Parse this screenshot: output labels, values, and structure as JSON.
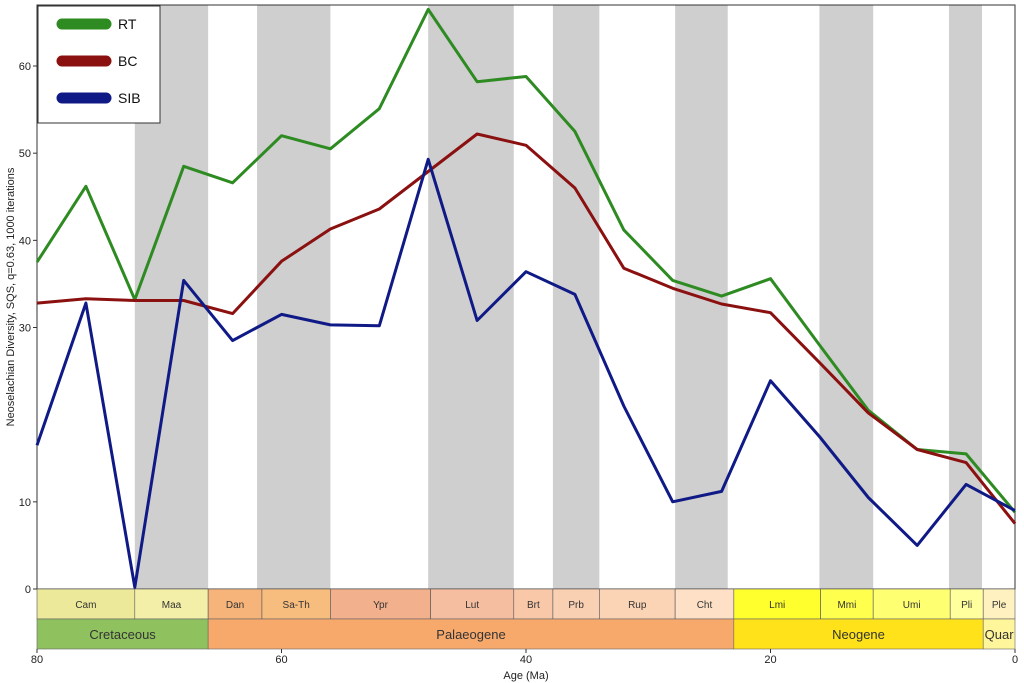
{
  "chart_data": {
    "type": "line",
    "xlabel": "Age (Ma)",
    "ylabel": "Neoselachian Diversity, SQS, q=0.63, 1000 iterations",
    "xlim": [
      80,
      0
    ],
    "ylim": [
      0,
      67
    ],
    "x_ticks": [
      80,
      60,
      40,
      20,
      0
    ],
    "y_ticks": [
      0,
      10,
      30,
      40,
      50,
      60
    ],
    "x": [
      80,
      76,
      72,
      68,
      64,
      60,
      56,
      52,
      48,
      44,
      40,
      36,
      32,
      28,
      24,
      20,
      16,
      12,
      8,
      4,
      0
    ],
    "series": [
      {
        "name": "RT",
        "color": "#2e8b22",
        "values": [
          37.5,
          46.2,
          33.2,
          48.5,
          46.6,
          52,
          50.5,
          55.1,
          66.5,
          58.2,
          58.8,
          52.5,
          41.2,
          35.4,
          33.6,
          35.6,
          28,
          20.5,
          16,
          15.5,
          8.8
        ]
      },
      {
        "name": "BC",
        "color": "#8b1010",
        "values": [
          32.8,
          33.3,
          33.1,
          33.1,
          31.6,
          37.6,
          41.3,
          43.6,
          47.9,
          52.2,
          50.9,
          46.0,
          36.8,
          34.5,
          32.7,
          31.7,
          26.0,
          20.2,
          16.0,
          14.5,
          7.5
        ]
      },
      {
        "name": "SIB",
        "color": "#101a86",
        "values": [
          16.5,
          32.8,
          0.2,
          35.4,
          28.5,
          31.5,
          30.3,
          30.2,
          49.3,
          30.8,
          36.4,
          33.8,
          21.0,
          10.0,
          11.2,
          23.9,
          17.5,
          10.5,
          5.0,
          12.0,
          9.0
        ]
      }
    ],
    "shaded_bands": [
      [
        72,
        66
      ],
      [
        62,
        56
      ],
      [
        48,
        41
      ],
      [
        37.8,
        34
      ],
      [
        27.8,
        23.5
      ],
      [
        16,
        11.6
      ],
      [
        5.4,
        2.7
      ]
    ],
    "legend": "top-left",
    "stages": [
      {
        "label": "Cam",
        "from": 80,
        "to": 72,
        "color": "#ece99a"
      },
      {
        "label": "Maa",
        "from": 72,
        "to": 66,
        "color": "#f4efa8"
      },
      {
        "label": "Dan",
        "from": 66,
        "to": 61.6,
        "color": "#f7b47a"
      },
      {
        "label": "Sa-Th",
        "from": 61.6,
        "to": 56,
        "color": "#f7bd7f"
      },
      {
        "label": "Ypr",
        "from": 56,
        "to": 47.8,
        "color": "#f2b08c"
      },
      {
        "label": "Lut",
        "from": 47.8,
        "to": 41,
        "color": "#f6bea1"
      },
      {
        "label": "Brt",
        "from": 41,
        "to": 37.8,
        "color": "#f8c8a8"
      },
      {
        "label": "Prb",
        "from": 37.8,
        "to": 34,
        "color": "#fad0b2"
      },
      {
        "label": "Rup",
        "from": 34,
        "to": 27.8,
        "color": "#fbd4b5"
      },
      {
        "label": "Cht",
        "from": 27.8,
        "to": 23,
        "color": "#fde0c6"
      },
      {
        "label": "Lmi",
        "from": 23,
        "to": 15.9,
        "color": "#ffff2e"
      },
      {
        "label": "Mmi",
        "from": 15.9,
        "to": 11.6,
        "color": "#ffff4e"
      },
      {
        "label": "Umi",
        "from": 11.6,
        "to": 5.3,
        "color": "#ffff72"
      },
      {
        "label": "Pli",
        "from": 5.3,
        "to": 2.6,
        "color": "#ffff9e"
      },
      {
        "label": "Ple",
        "from": 2.6,
        "to": 0,
        "color": "#fff2c0"
      }
    ],
    "periods": [
      {
        "label": "Cretaceous",
        "from": 80,
        "to": 66,
        "color": "#8fc25f"
      },
      {
        "label": "Palaeogene",
        "from": 66,
        "to": 23,
        "color": "#f7a96c"
      },
      {
        "label": "Neogene",
        "from": 23,
        "to": 2.6,
        "color": "#ffe219"
      },
      {
        "label": "Quar",
        "from": 2.6,
        "to": 0,
        "color": "#fff59a"
      }
    ]
  }
}
